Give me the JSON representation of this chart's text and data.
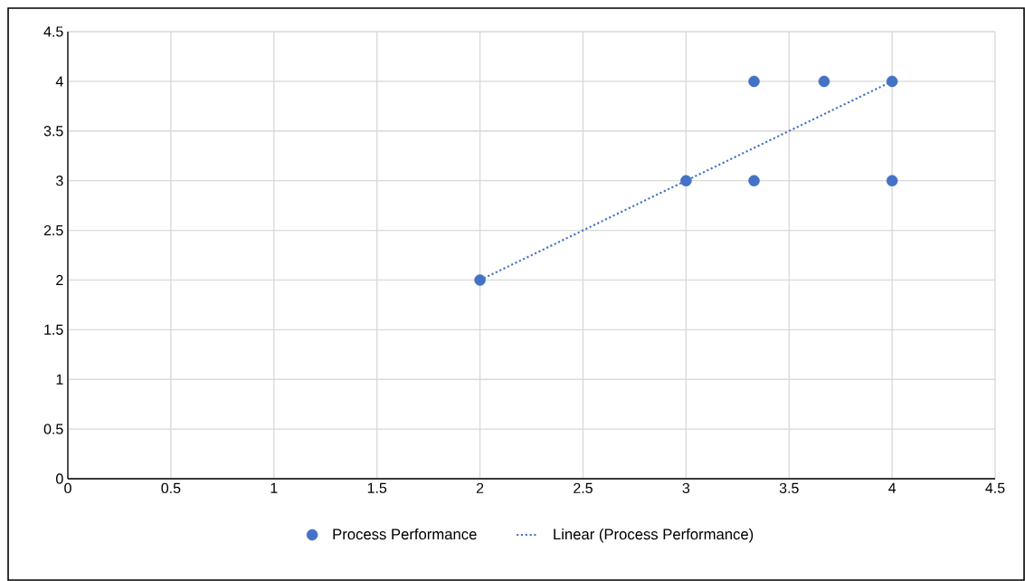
{
  "chart_data": {
    "type": "scatter",
    "series": [
      {
        "name": "Process Performance",
        "color": "#4472c4",
        "marker": "circle",
        "x": [
          2,
          3,
          3.33,
          3.33,
          3.67,
          4,
          4
        ],
        "values": [
          2,
          3,
          4,
          3,
          4,
          4,
          3
        ]
      },
      {
        "name": "Linear (Process Performance)",
        "type": "line",
        "color": "#4472c4",
        "line_style": "dotted",
        "marker": "none",
        "x": [
          2,
          4
        ],
        "values": [
          2,
          4
        ]
      }
    ],
    "xlim": [
      0,
      4.5
    ],
    "ylim": [
      0,
      4.5
    ],
    "xticks": [
      0,
      0.5,
      1,
      1.5,
      2,
      2.5,
      3,
      3.5,
      4,
      4.5
    ],
    "yticks": [
      0,
      0.5,
      1,
      1.5,
      2,
      2.5,
      3,
      3.5,
      4,
      4.5
    ],
    "grid": true,
    "legend": "bottom"
  }
}
